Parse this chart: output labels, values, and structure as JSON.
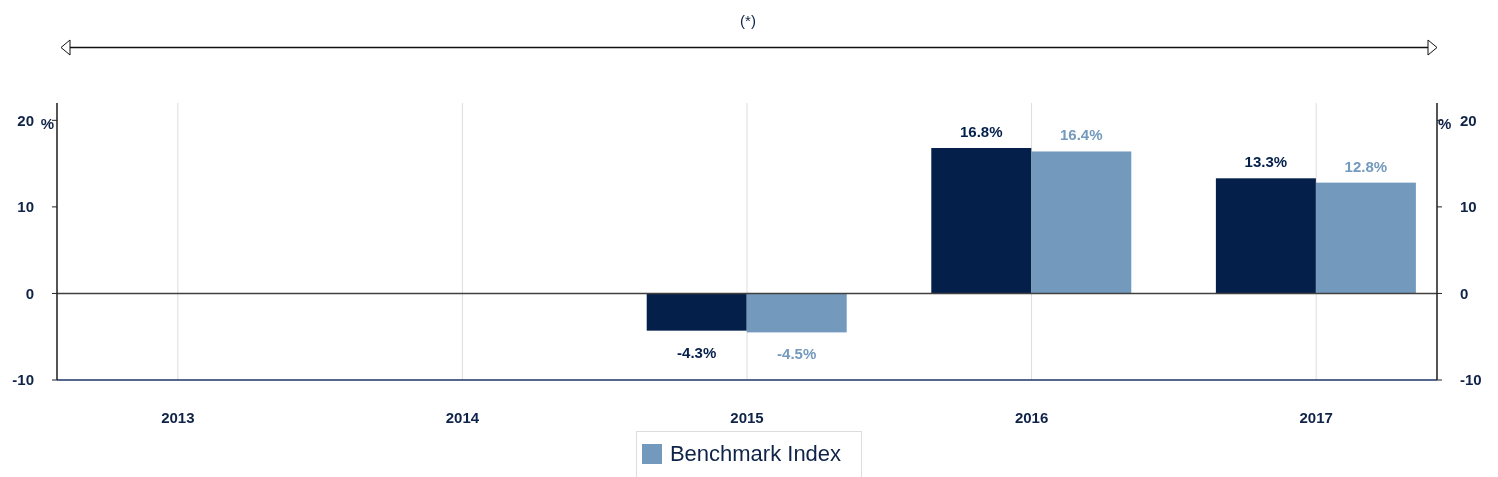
{
  "chart_data": {
    "type": "bar",
    "annotations": [
      "(*)"
    ],
    "ylabel": "%",
    "y2label": "%",
    "categories": [
      "2013",
      "2014",
      "2015",
      "2016",
      "2017"
    ],
    "series": [
      {
        "color": "#031f4a",
        "values": [
          null,
          null,
          -4.3,
          16.8,
          13.3
        ],
        "value_labels": [
          null,
          null,
          "-4.3%",
          "16.8%",
          "13.3%"
        ]
      },
      {
        "name": "Benchmark Index",
        "color": "#7399bd",
        "values": [
          null,
          null,
          -4.5,
          16.4,
          12.8
        ],
        "value_labels": [
          null,
          null,
          "-4.5%",
          "16.4%",
          "12.8%"
        ]
      }
    ],
    "ylim": [
      -10,
      22
    ],
    "yticks": [
      -10,
      0,
      10,
      20
    ],
    "y2lim": [
      -10,
      22
    ],
    "y2ticks": [
      -10,
      0,
      10,
      20
    ],
    "grid": true,
    "legend": "bottom",
    "ref_lines": [
      {
        "axis": "y",
        "value": 0,
        "color": "#404040"
      }
    ]
  }
}
